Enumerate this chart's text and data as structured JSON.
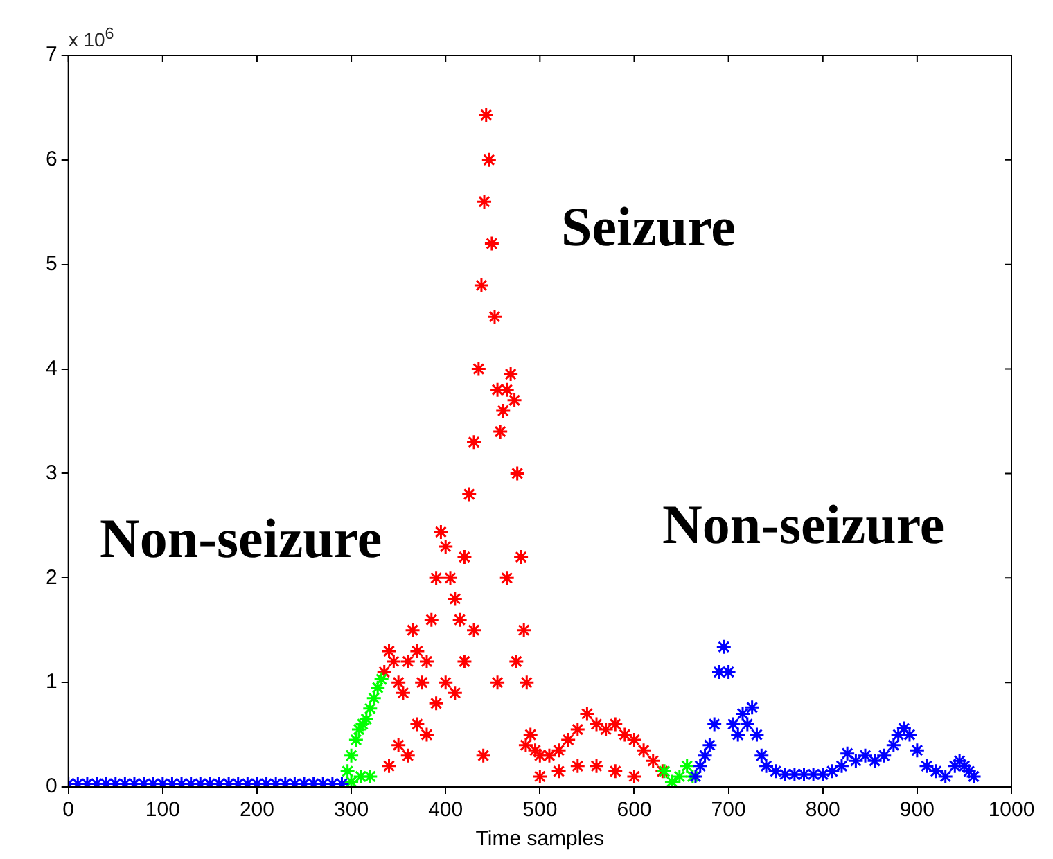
{
  "chart_data": {
    "type": "scatter",
    "xlabel": "Time samples",
    "xlim": [
      0,
      1000
    ],
    "ylim": [
      0,
      7
    ],
    "xticks": [
      0,
      100,
      200,
      300,
      400,
      500,
      600,
      700,
      800,
      900,
      1000
    ],
    "yticks": [
      0,
      1,
      2,
      3,
      4,
      5,
      6,
      7
    ],
    "grid": false,
    "legend": false,
    "marker": "cross",
    "annotations": [
      "x 10$^{6}$",
      "Non-seizure",
      "Seizure",
      "Non-seizure"
    ],
    "series": [
      {
        "color": "#0000ff",
        "x": [
          0,
          10,
          20,
          30,
          40,
          50,
          60,
          70,
          80,
          90,
          100,
          110,
          120,
          130,
          140,
          150,
          160,
          170,
          180,
          190,
          200,
          210,
          220,
          230,
          240,
          250,
          260,
          270,
          280,
          290,
          665,
          670,
          675,
          680,
          685,
          690,
          695,
          700,
          705,
          710,
          715,
          720,
          725,
          730,
          735,
          740,
          750,
          760,
          770,
          780,
          790,
          800,
          810,
          820,
          826,
          835,
          845,
          855,
          865,
          875,
          880,
          886,
          892,
          900,
          910,
          920,
          930,
          940,
          945,
          950,
          955,
          960
        ],
        "values": [
          0.03,
          0.03,
          0.03,
          0.03,
          0.03,
          0.03,
          0.03,
          0.03,
          0.03,
          0.03,
          0.03,
          0.03,
          0.03,
          0.03,
          0.03,
          0.03,
          0.03,
          0.03,
          0.03,
          0.03,
          0.03,
          0.03,
          0.03,
          0.03,
          0.03,
          0.03,
          0.03,
          0.03,
          0.03,
          0.03,
          0.1,
          0.2,
          0.3,
          0.4,
          0.6,
          1.1,
          1.34,
          1.1,
          0.6,
          0.5,
          0.7,
          0.6,
          0.76,
          0.5,
          0.3,
          0.2,
          0.15,
          0.12,
          0.12,
          0.12,
          0.12,
          0.12,
          0.15,
          0.2,
          0.32,
          0.25,
          0.3,
          0.25,
          0.3,
          0.4,
          0.5,
          0.56,
          0.5,
          0.35,
          0.2,
          0.15,
          0.1,
          0.2,
          0.25,
          0.2,
          0.15,
          0.1
        ]
      },
      {
        "color": "#00ff00",
        "x": [
          296,
          300,
          305,
          308,
          312,
          316,
          320,
          324,
          328,
          332,
          300,
          310,
          320,
          632,
          640,
          648,
          656,
          662
        ],
        "values": [
          0.15,
          0.3,
          0.45,
          0.55,
          0.6,
          0.65,
          0.75,
          0.85,
          0.95,
          1.03,
          0.05,
          0.1,
          0.1,
          0.15,
          0.05,
          0.1,
          0.2,
          0.1
        ]
      },
      {
        "color": "#ff0000",
        "x": [
          335,
          340,
          345,
          350,
          355,
          360,
          365,
          370,
          375,
          380,
          385,
          390,
          395,
          400,
          405,
          410,
          415,
          420,
          425,
          430,
          435,
          438,
          441,
          443,
          446,
          449,
          452,
          455,
          458,
          461,
          465,
          469,
          473,
          476,
          480,
          483,
          486,
          490,
          495,
          500,
          510,
          520,
          530,
          540,
          550,
          560,
          570,
          580,
          590,
          600,
          610,
          620,
          630,
          340,
          350,
          360,
          370,
          380,
          390,
          400,
          410,
          420,
          430,
          440,
          455,
          465,
          475,
          485,
          500,
          520,
          540,
          560,
          580,
          600
        ],
        "values": [
          1.1,
          1.3,
          1.2,
          1.0,
          0.9,
          1.2,
          1.5,
          1.3,
          1.0,
          1.2,
          1.6,
          2.0,
          2.44,
          2.3,
          2.0,
          1.8,
          1.6,
          2.2,
          2.8,
          3.3,
          4.0,
          4.8,
          5.6,
          6.43,
          6.0,
          5.2,
          4.5,
          3.8,
          3.4,
          3.6,
          3.8,
          3.95,
          3.7,
          3.0,
          2.2,
          1.5,
          1.0,
          0.5,
          0.35,
          0.3,
          0.3,
          0.35,
          0.45,
          0.55,
          0.7,
          0.6,
          0.55,
          0.6,
          0.5,
          0.45,
          0.35,
          0.25,
          0.15,
          0.2,
          0.4,
          0.3,
          0.6,
          0.5,
          0.8,
          1.0,
          0.9,
          1.2,
          1.5,
          0.3,
          1.0,
          2.0,
          1.2,
          0.4,
          0.1,
          0.15,
          0.2,
          0.2,
          0.15,
          0.1
        ]
      }
    ]
  }
}
